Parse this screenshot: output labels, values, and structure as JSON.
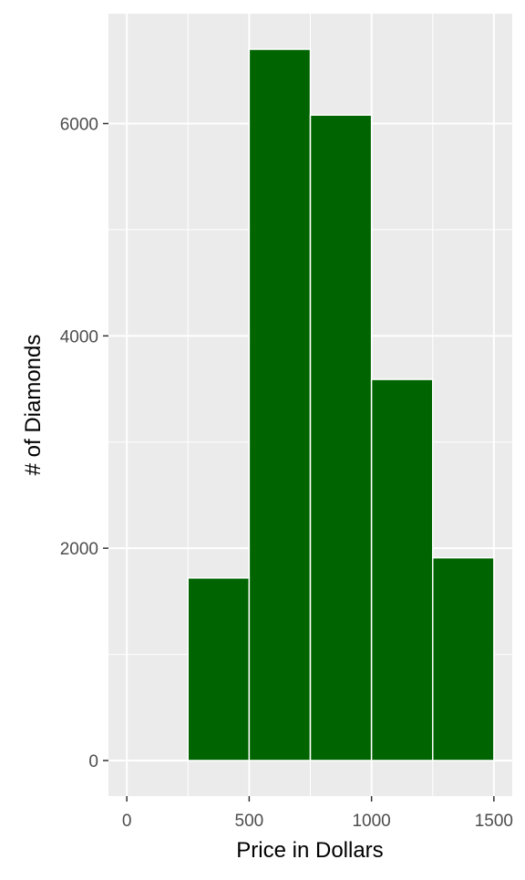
{
  "chart_data": {
    "type": "bar",
    "subtype": "histogram",
    "bins": [
      {
        "start": 250,
        "end": 500,
        "count": 1720
      },
      {
        "start": 500,
        "end": 750,
        "count": 6700
      },
      {
        "start": 750,
        "end": 1000,
        "count": 6080
      },
      {
        "start": 1000,
        "end": 1250,
        "count": 3590
      },
      {
        "start": 1250,
        "end": 1500,
        "count": 1910
      }
    ],
    "xlabel": "Price in Dollars",
    "ylabel": "# of Diamonds",
    "xlim": [
      -75,
      1575
    ],
    "ylim": [
      -335,
      7035
    ],
    "x_ticks": [
      0,
      500,
      1000,
      1500
    ],
    "x_tick_labels": [
      "0",
      "500",
      "1000",
      "1500"
    ],
    "x_minor_ticks": [
      250,
      750,
      1250
    ],
    "y_ticks": [
      0,
      2000,
      4000,
      6000
    ],
    "y_tick_labels": [
      "0",
      "2000",
      "4000",
      "6000"
    ],
    "y_minor_ticks": [
      1000,
      3000,
      5000
    ],
    "grid": true,
    "legend": "none",
    "colors": {
      "bar_fill": "#006400",
      "bar_outline": "#ffffff",
      "panel_background": "#ebebeb",
      "grid": "#ffffff",
      "tick_text": "#4d4d4d",
      "title_text": "#000000"
    }
  }
}
